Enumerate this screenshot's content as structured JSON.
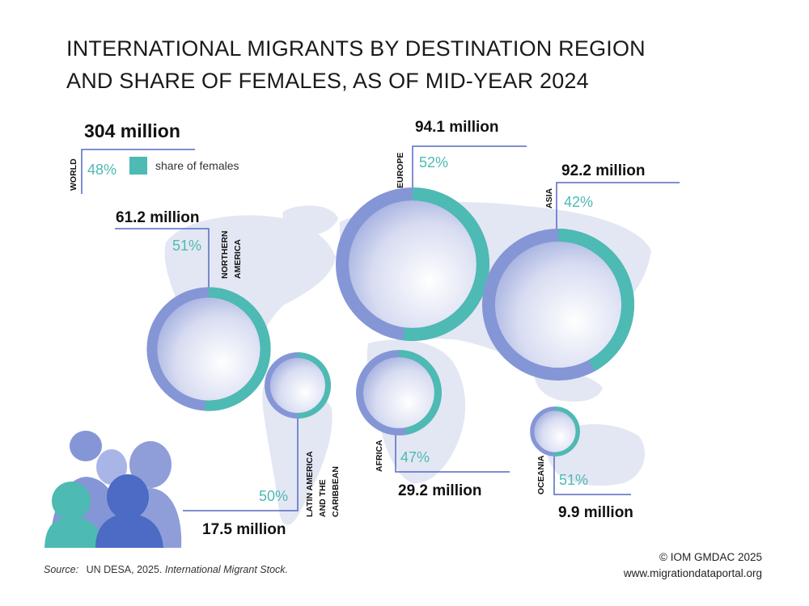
{
  "title": {
    "line1": "INTERNATIONAL MIGRANTS BY DESTINATION REGION",
    "line2": "AND SHARE OF FEMALES, AS OF MID-YEAR 2024"
  },
  "legend": {
    "label": "share of females",
    "color": "#4dbab3"
  },
  "colors": {
    "female": "#4dbab3",
    "ring_rest": "#8596d6",
    "guide": "#5568c4",
    "map": "#e3e7f3"
  },
  "chart_data": {
    "type": "bubble-map",
    "title": "INTERNATIONAL MIGRANTS BY DESTINATION REGION AND SHARE OF FEMALES, AS OF MID-YEAR 2024",
    "units": "million",
    "series": [
      {
        "region": "WORLD",
        "migrants_million": 304,
        "total_label": "304 million",
        "female_share": 48,
        "female_label": "48%"
      },
      {
        "region": "NORTHERN AMERICA",
        "migrants_million": 61.2,
        "total_label": "61.2 million",
        "female_share": 51,
        "female_label": "51%"
      },
      {
        "region": "EUROPE",
        "migrants_million": 94.1,
        "total_label": "94.1 million",
        "female_share": 52,
        "female_label": "52%"
      },
      {
        "region": "ASIA",
        "migrants_million": 92.2,
        "total_label": "92.2 million",
        "female_share": 42,
        "female_label": "42%"
      },
      {
        "region": "LATIN AMERICA AND THE CARIBBEAN",
        "migrants_million": 17.5,
        "total_label": "17.5 million",
        "female_share": 50,
        "female_label": "50%"
      },
      {
        "region": "AFRICA",
        "migrants_million": 29.2,
        "total_label": "29.2 million",
        "female_share": 47,
        "female_label": "47%"
      },
      {
        "region": "OCEANIA",
        "migrants_million": 9.9,
        "total_label": "9.9 million",
        "female_share": 51,
        "female_label": "51%"
      }
    ]
  },
  "source": {
    "label": "Source:",
    "text": "UN DESA, 2025.",
    "publication": "International Migrant Stock."
  },
  "credit": {
    "line1": "© IOM GMDAC 2025",
    "line2": "www.migrationdataportal.org"
  }
}
